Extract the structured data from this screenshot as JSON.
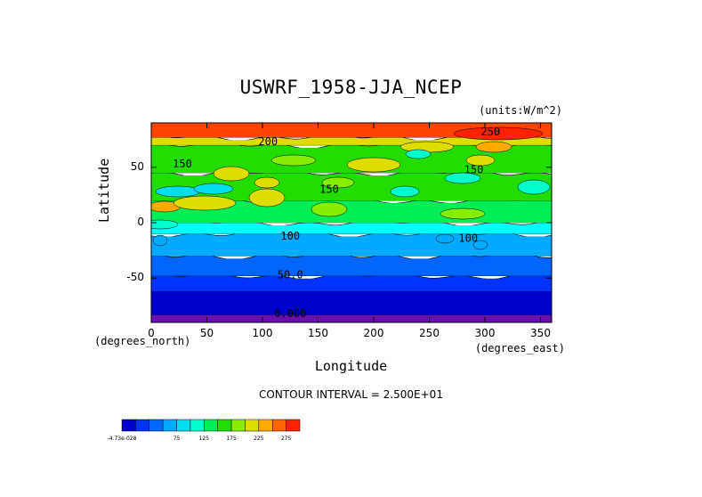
{
  "chart_data": {
    "type": "heatmap",
    "title": "USWRF_1958-JJA_NCEP",
    "units": "(units:W/m^2)",
    "xlabel": "Longitude",
    "ylabel": "Latitude",
    "x_unit_label": "(degrees_east)",
    "y_unit_label": "(degrees_north)",
    "xlim": [
      0,
      360
    ],
    "ylim": [
      -90,
      90
    ],
    "x_ticks": [
      0,
      50,
      100,
      150,
      200,
      250,
      300,
      350
    ],
    "y_ticks": [
      -50,
      0,
      50
    ],
    "contour_interval": "CONTOUR INTERVAL = 2.500E+01",
    "colorbar": {
      "labels": [
        "-4.73e-028",
        "75",
        "125",
        "175",
        "225",
        "275"
      ],
      "colors": [
        "#0000cc",
        "#0033ff",
        "#0066ff",
        "#00aaff",
        "#00ddee",
        "#00ffcc",
        "#00ee55",
        "#22dd00",
        "#88ee00",
        "#dddd00",
        "#ffaa00",
        "#ff6600",
        "#ff2200"
      ]
    },
    "zonal_bands": [
      {
        "lat_min": -90,
        "lat_max": -83,
        "value": 0,
        "color": "#6a0fb0"
      },
      {
        "lat_min": -83,
        "lat_max": -62,
        "value": 10,
        "color": "#0000cc"
      },
      {
        "lat_min": -62,
        "lat_max": -48,
        "value": 40,
        "color": "#0033ff"
      },
      {
        "lat_min": -48,
        "lat_max": -30,
        "value": 65,
        "color": "#0066ff"
      },
      {
        "lat_min": -30,
        "lat_max": -10,
        "value": 90,
        "color": "#00aaff"
      },
      {
        "lat_min": -10,
        "lat_max": 0,
        "value": 105,
        "color": "#00ffff"
      },
      {
        "lat_min": 0,
        "lat_max": 20,
        "value": 130,
        "color": "#00ee55"
      },
      {
        "lat_min": 20,
        "lat_max": 45,
        "value": 150,
        "color": "#22dd00"
      },
      {
        "lat_min": 45,
        "lat_max": 70,
        "value": 145,
        "color": "#22dd00"
      },
      {
        "lat_min": 70,
        "lat_max": 77,
        "value": 200,
        "color": "#dddd00"
      },
      {
        "lat_min": 77,
        "lat_max": 90,
        "value": 260,
        "color": "#ff4400"
      }
    ],
    "contour_labels": [
      {
        "text": "200",
        "lon": 105,
        "lat": 73
      },
      {
        "text": "250",
        "lon": 305,
        "lat": 82
      },
      {
        "text": "150",
        "lon": 28,
        "lat": 53
      },
      {
        "text": "150",
        "lon": 160,
        "lat": 30
      },
      {
        "text": "150",
        "lon": 290,
        "lat": 48
      },
      {
        "text": "100",
        "lon": 125,
        "lat": -12
      },
      {
        "text": "100",
        "lon": 285,
        "lat": -14
      },
      {
        "text": "50.0",
        "lon": 125,
        "lat": -47
      },
      {
        "text": "0.000",
        "lon": 125,
        "lat": -82
      }
    ]
  }
}
